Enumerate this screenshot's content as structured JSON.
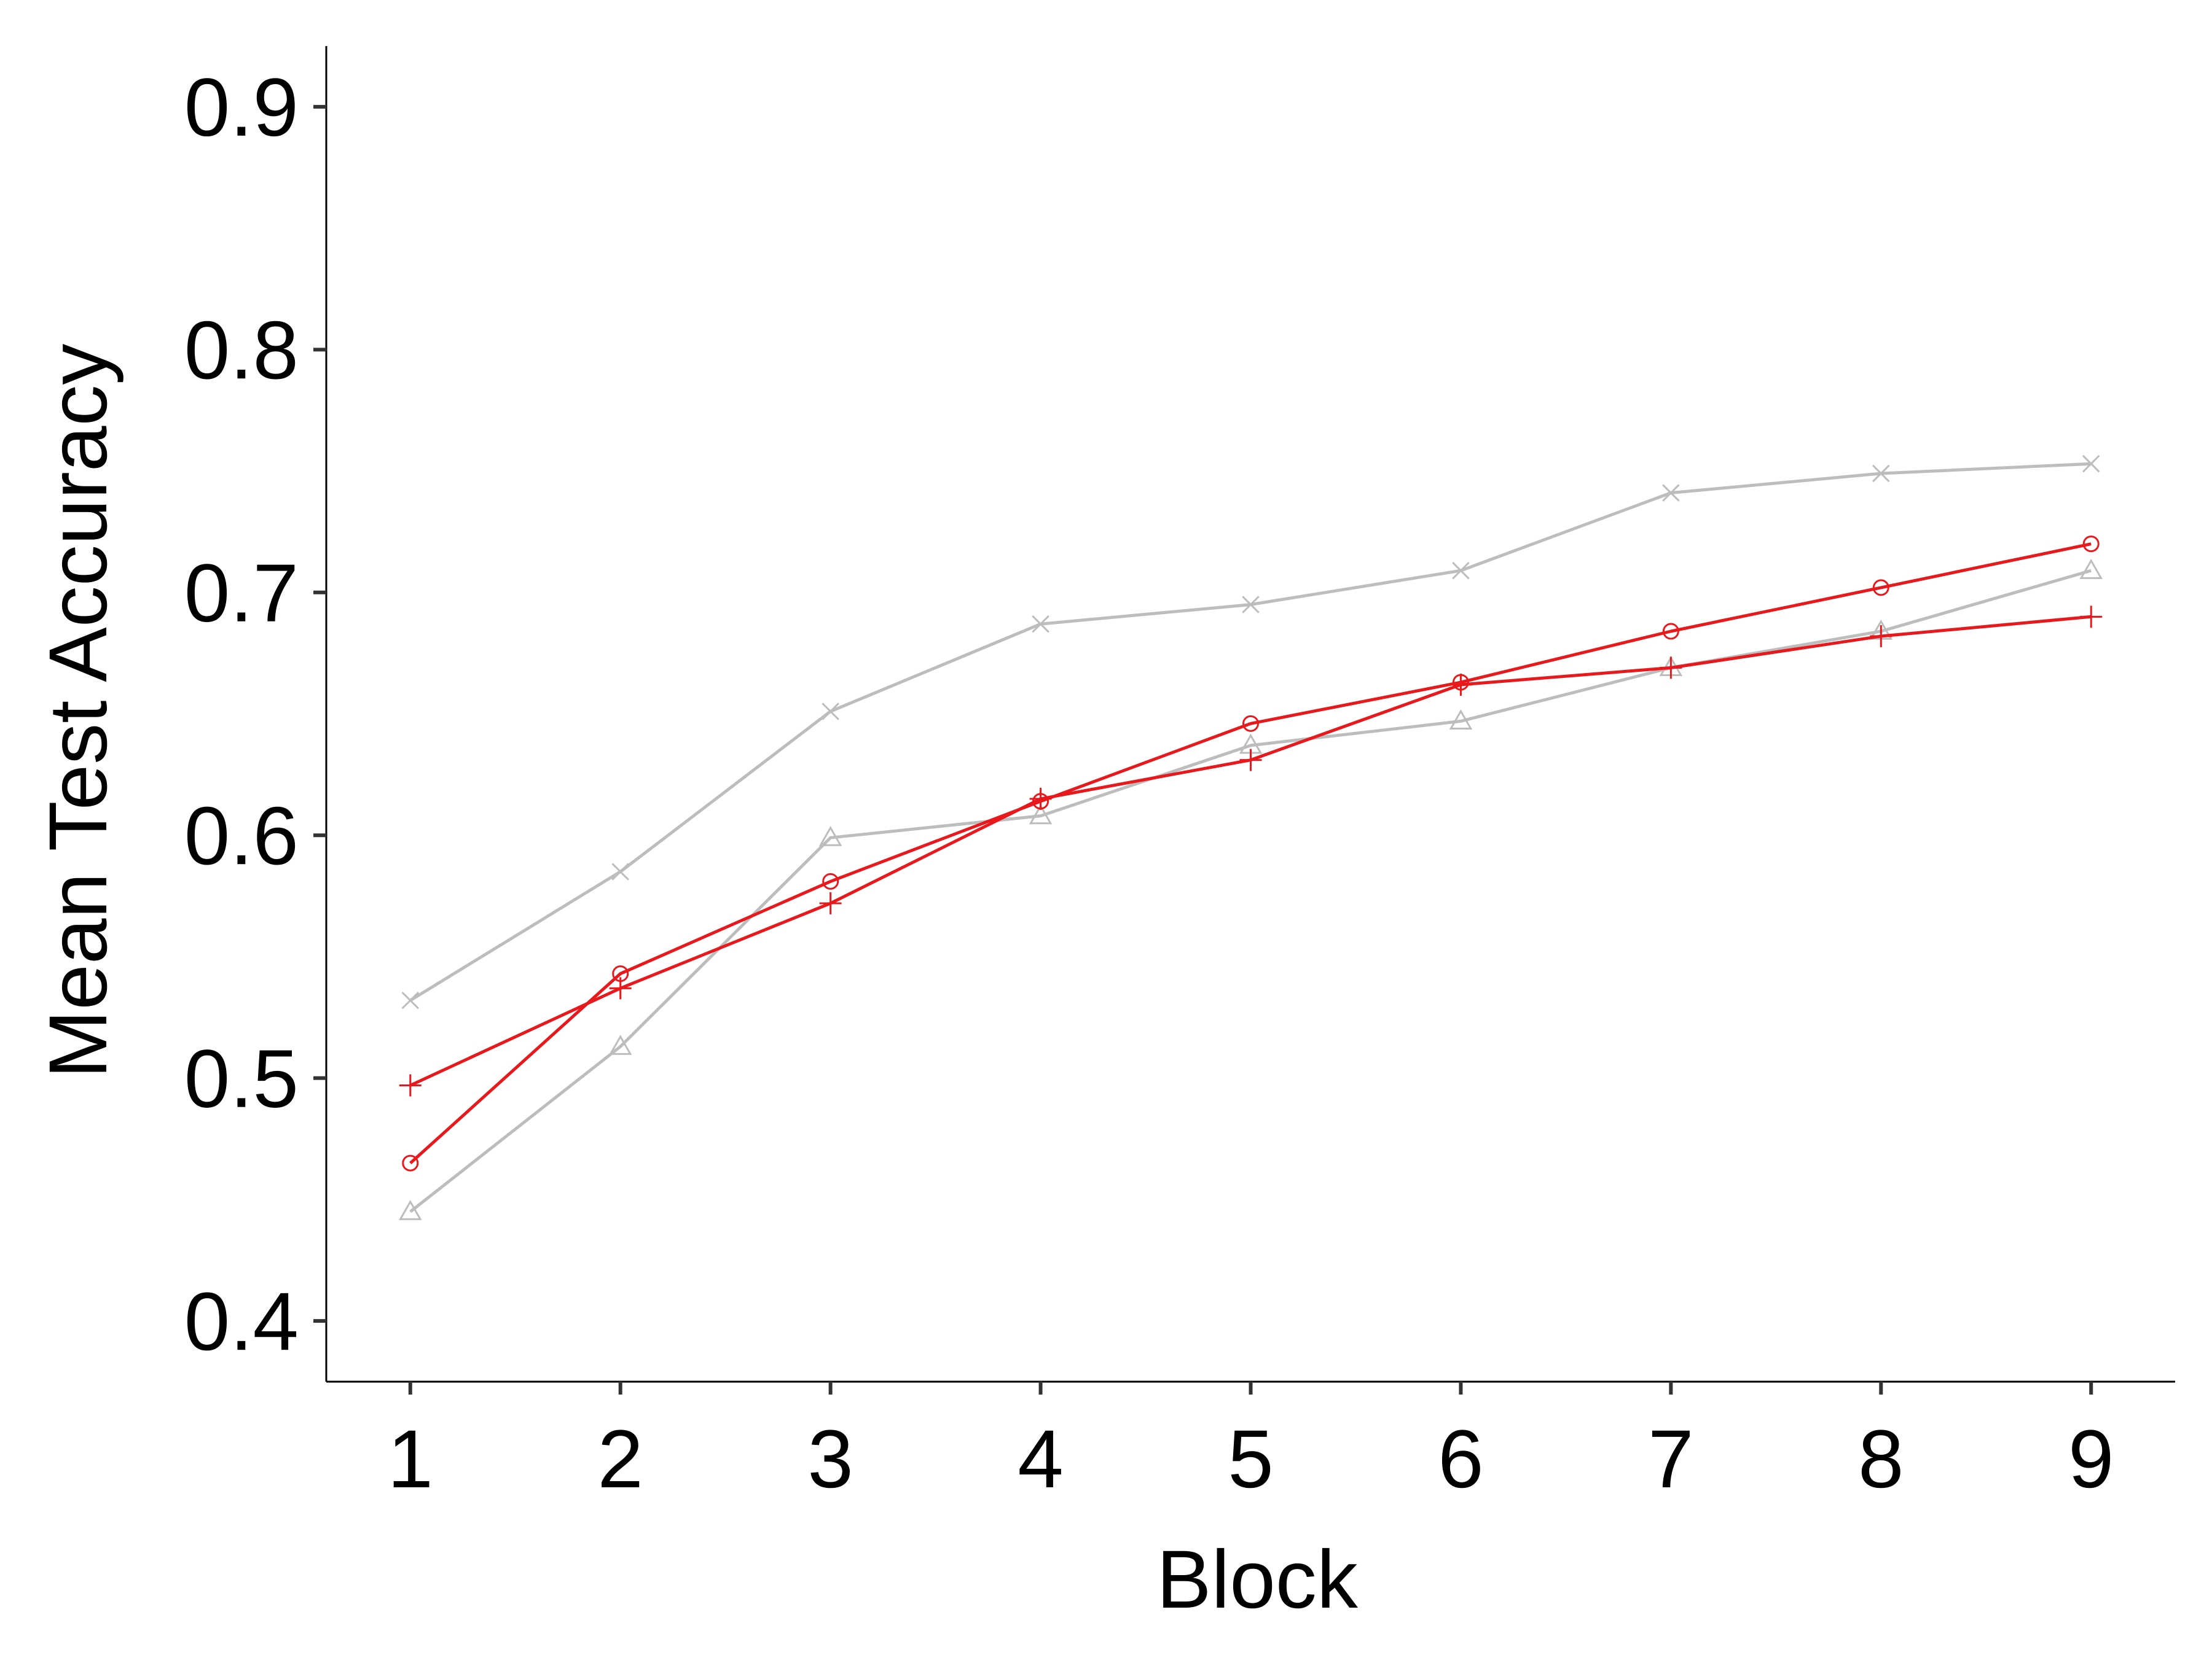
{
  "chart_data": {
    "type": "line",
    "title": "",
    "xlabel": "Block",
    "ylabel": "Mean Test Accuracy",
    "x": [
      1,
      2,
      3,
      4,
      5,
      6,
      7,
      8,
      9
    ],
    "xlim": [
      0.6,
      9.4
    ],
    "ylim": [
      0.375,
      0.925
    ],
    "yticks": [
      0.4,
      0.5,
      0.6,
      0.7,
      0.8,
      0.9
    ],
    "ytick_labels": [
      "0.4",
      "0.5",
      "0.6",
      "0.7",
      "0.8",
      "0.9"
    ],
    "xtick_labels": [
      "1",
      "2",
      "3",
      "4",
      "5",
      "6",
      "7",
      "8",
      "9"
    ],
    "grid": false,
    "legend": "none",
    "series": [
      {
        "name": "grey-x",
        "marker": "x",
        "color": "#bdbdbd",
        "values": [
          0.532,
          0.585,
          0.651,
          0.687,
          0.695,
          0.709,
          0.741,
          0.749,
          0.753
        ]
      },
      {
        "name": "grey-triangle",
        "marker": "triangle",
        "color": "#bdbdbd",
        "values": [
          0.445,
          0.513,
          0.599,
          0.608,
          0.637,
          0.647,
          0.669,
          0.684,
          0.709
        ]
      },
      {
        "name": "red-circle",
        "marker": "circle",
        "color": "#e8191c",
        "values": [
          0.465,
          0.543,
          0.581,
          0.614,
          0.646,
          0.663,
          0.684,
          0.702,
          0.72
        ]
      },
      {
        "name": "red-plus",
        "marker": "plus",
        "color": "#e8191c",
        "values": [
          0.497,
          0.537,
          0.572,
          0.615,
          0.631,
          0.662,
          0.669,
          0.682,
          0.69
        ]
      }
    ]
  }
}
